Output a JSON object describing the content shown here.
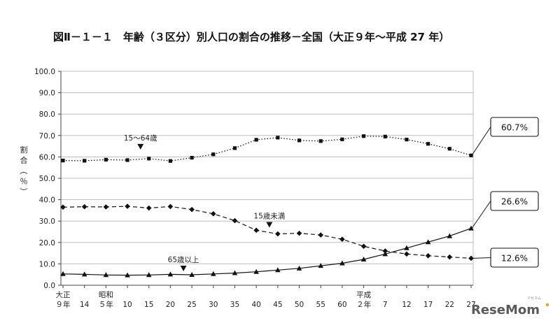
{
  "chart_data": {
    "type": "line",
    "title": "図Ⅱ－１－１　年齢（３区分）別人口の割合の推移－全国（大正９年～平成 27 年）",
    "ylabel": "割合（％）",
    "ylim": [
      0,
      100
    ],
    "yticks": [
      "0.0",
      "10.0",
      "20.0",
      "30.0",
      "40.0",
      "50.0",
      "60.0",
      "70.0",
      "80.0",
      "90.0",
      "100.0"
    ],
    "grid": true,
    "categories": [
      "大正9",
      "14",
      "昭和5",
      "10",
      "15",
      "20",
      "25",
      "30",
      "35",
      "40",
      "45",
      "50",
      "55",
      "60",
      "平成2",
      "7",
      "12",
      "17",
      "22",
      "27"
    ],
    "x_tick_labels": [
      {
        "line1": "大正",
        "line2": "９年"
      },
      {
        "line1": "",
        "line2": "14"
      },
      {
        "line1": "昭和",
        "line2": "５年"
      },
      {
        "line1": "",
        "line2": "10"
      },
      {
        "line1": "",
        "line2": "15"
      },
      {
        "line1": "",
        "line2": "20"
      },
      {
        "line1": "",
        "line2": "25"
      },
      {
        "line1": "",
        "line2": "30"
      },
      {
        "line1": "",
        "line2": "35"
      },
      {
        "line1": "",
        "line2": "40"
      },
      {
        "line1": "",
        "line2": "45"
      },
      {
        "line1": "",
        "line2": "50"
      },
      {
        "line1": "",
        "line2": "55"
      },
      {
        "line1": "",
        "line2": "60"
      },
      {
        "line1": "平成",
        "line2": "２年"
      },
      {
        "line1": "",
        "line2": "7"
      },
      {
        "line1": "",
        "line2": "12"
      },
      {
        "line1": "",
        "line2": "17"
      },
      {
        "line1": "",
        "line2": "22"
      },
      {
        "line1": "",
        "line2": "27"
      }
    ],
    "series": [
      {
        "name": "15～64歳",
        "marker": "square",
        "dash": "dotted",
        "values": [
          58.3,
          58.2,
          58.7,
          58.5,
          59.2,
          58.1,
          59.6,
          61.2,
          64.1,
          68.0,
          69.0,
          67.7,
          67.4,
          68.2,
          69.7,
          69.5,
          68.1,
          66.1,
          63.8,
          60.7
        ]
      },
      {
        "name": "15歳未満",
        "marker": "diamond",
        "dash": "dashed",
        "values": [
          36.5,
          36.7,
          36.6,
          36.9,
          36.1,
          36.8,
          35.4,
          33.4,
          30.2,
          25.7,
          24.0,
          24.3,
          23.5,
          21.5,
          18.2,
          16.0,
          14.6,
          13.8,
          13.2,
          12.6
        ]
      },
      {
        "name": "65歳以上",
        "marker": "triangle",
        "dash": "solid",
        "values": [
          5.3,
          5.1,
          4.8,
          4.7,
          4.8,
          5.1,
          4.9,
          5.3,
          5.7,
          6.3,
          7.1,
          7.9,
          9.1,
          10.3,
          12.1,
          14.6,
          17.4,
          20.2,
          23.0,
          26.6
        ]
      }
    ],
    "annotations": [
      {
        "text": "15～64歳",
        "series": 0,
        "at_index": 4
      },
      {
        "text": "15歳未満",
        "series": 1,
        "at_index": 10
      },
      {
        "text": "65歳以上",
        "series": 2,
        "at_index": 6
      }
    ],
    "callouts": [
      {
        "text": "60.7%",
        "series": 0
      },
      {
        "text": "26.6%",
        "series": 2
      },
      {
        "text": "12.6%",
        "series": 1
      }
    ]
  },
  "watermark": {
    "text": "ReseMom",
    "sub": "リセマム",
    "accent": "#f5a000"
  }
}
